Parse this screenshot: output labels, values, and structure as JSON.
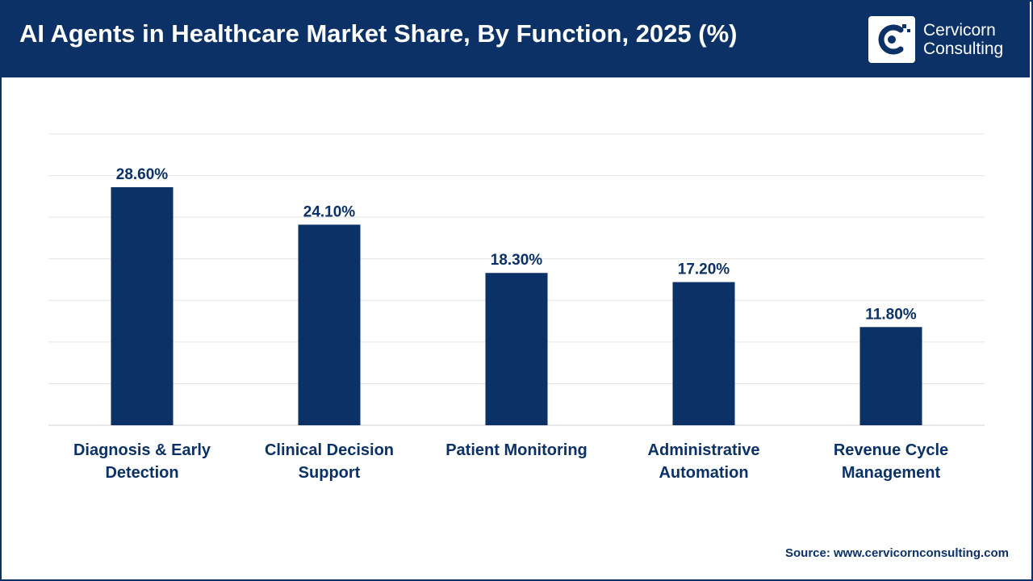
{
  "header": {
    "title": "AI Agents in Healthcare Market Share, By Function, 2025 (%)",
    "logo_line1": "Cervicorn",
    "logo_line2": "Consulting"
  },
  "source": "Source: www.cervicornconsulting.com",
  "colors": {
    "brand": "#0b3166",
    "bar": "#0b3166",
    "grid": "#e3e3e3"
  },
  "chart_data": {
    "type": "bar",
    "categories": [
      [
        "Diagnosis & Early",
        "Detection"
      ],
      [
        "Clinical Decision",
        "Support"
      ],
      [
        "Patient Monitoring"
      ],
      [
        "Administrative",
        "Automation"
      ],
      [
        "Revenue Cycle",
        "Management"
      ]
    ],
    "values": [
      28.6,
      24.1,
      18.3,
      17.2,
      11.8
    ],
    "data_labels": [
      "28.60%",
      "24.10%",
      "18.30%",
      "17.20%",
      "11.80%"
    ],
    "title": "",
    "xlabel": "",
    "ylabel": "",
    "ylim": [
      0,
      35
    ],
    "grid": true,
    "legend": "none"
  }
}
